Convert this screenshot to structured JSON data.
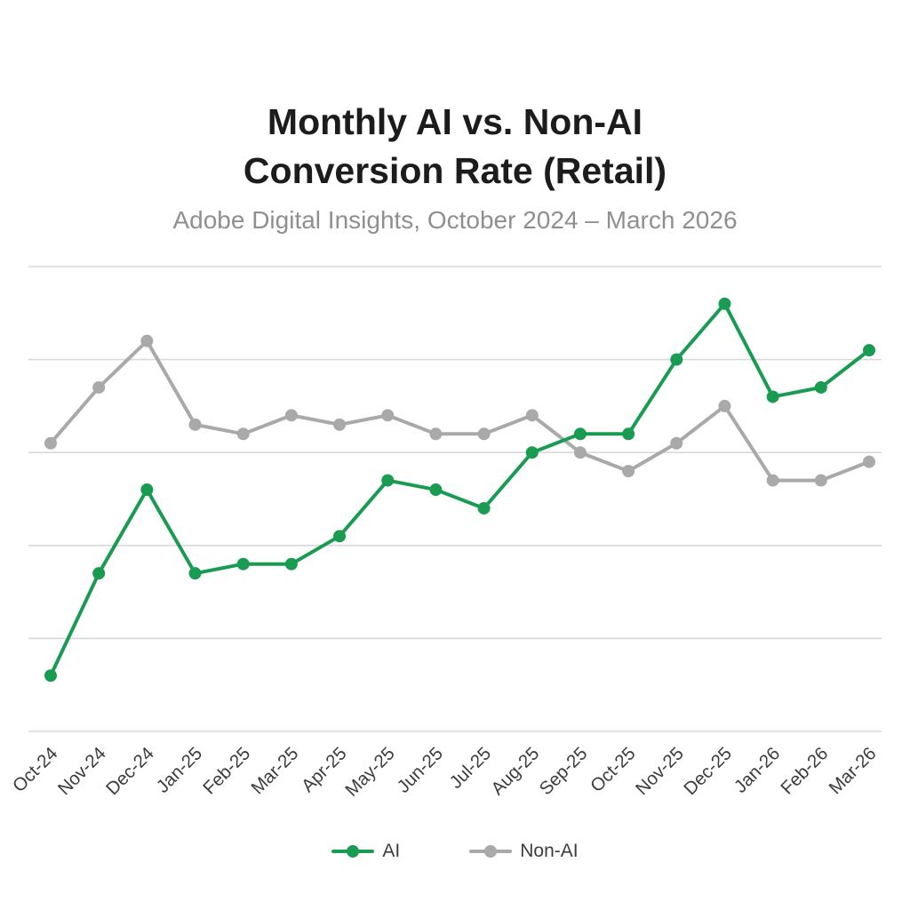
{
  "header": {
    "title_line1": "Monthly AI vs. Non-AI",
    "title_line2": "Conversion Rate (Retail)",
    "subtitle": "Adobe Digital Insights, October 2024 – March 2026"
  },
  "chart_data": {
    "type": "line",
    "title": "Monthly AI vs. Non-AI Conversion Rate (Retail)",
    "subtitle": "Adobe Digital Insights, October 2024 – March 2026",
    "categories": [
      "Oct-24",
      "Nov-24",
      "Dec-24",
      "Jan-25",
      "Feb-25",
      "Mar-25",
      "Apr-25",
      "May-25",
      "Jun-25",
      "Jul-25",
      "Aug-25",
      "Sep-25",
      "Oct-25",
      "Nov-25",
      "Dec-25",
      "Jan-26",
      "Feb-26",
      "Mar-26"
    ],
    "series": [
      {
        "name": "AI",
        "color": "#1a9b52",
        "values": [
          2.3,
          2.85,
          3.3,
          2.85,
          2.9,
          2.9,
          3.05,
          3.35,
          3.3,
          3.2,
          3.5,
          3.6,
          3.6,
          4.0,
          4.3,
          3.8,
          3.85,
          4.05
        ]
      },
      {
        "name": "Non-AI",
        "color": "#a9a9a9",
        "values": [
          3.55,
          3.85,
          4.1,
          3.65,
          3.6,
          3.7,
          3.65,
          3.7,
          3.6,
          3.6,
          3.7,
          3.5,
          3.4,
          3.55,
          3.75,
          3.35,
          3.35,
          3.45
        ]
      }
    ],
    "xlabel": "",
    "ylabel": "",
    "ylim": [
      2.0,
      4.5
    ],
    "ytick": 0.5,
    "grid": true,
    "grid_color": "#d9d9d9",
    "y_axis_labels_shown": false,
    "x_label_color": "#3c3c3c",
    "x_label_rotation": -45,
    "legend_position": "bottom"
  }
}
